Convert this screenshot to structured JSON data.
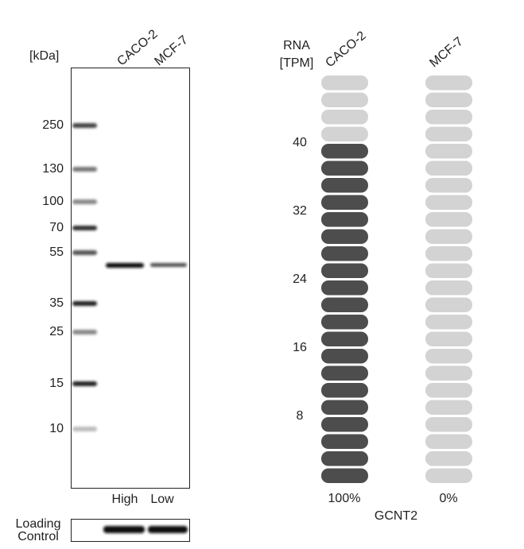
{
  "western_blot": {
    "unit_label": "[kDa]",
    "lanes": [
      "CACO-2",
      "MCF-7"
    ],
    "markers": [
      "250",
      "130",
      "100",
      "70",
      "55",
      "35",
      "25",
      "15",
      "10"
    ],
    "lane_levels": [
      "High",
      "Low"
    ],
    "loading_control": [
      "Loading",
      "Control"
    ]
  },
  "rna": {
    "axis_label": [
      "RNA",
      "[TPM]"
    ],
    "samples": [
      {
        "name": "CACO-2",
        "percent": "100%"
      },
      {
        "name": "MCF-7",
        "percent": "0%"
      }
    ],
    "tick_labels": [
      "40",
      "32",
      "24",
      "16",
      "8"
    ],
    "gene": "GCNT2"
  }
}
